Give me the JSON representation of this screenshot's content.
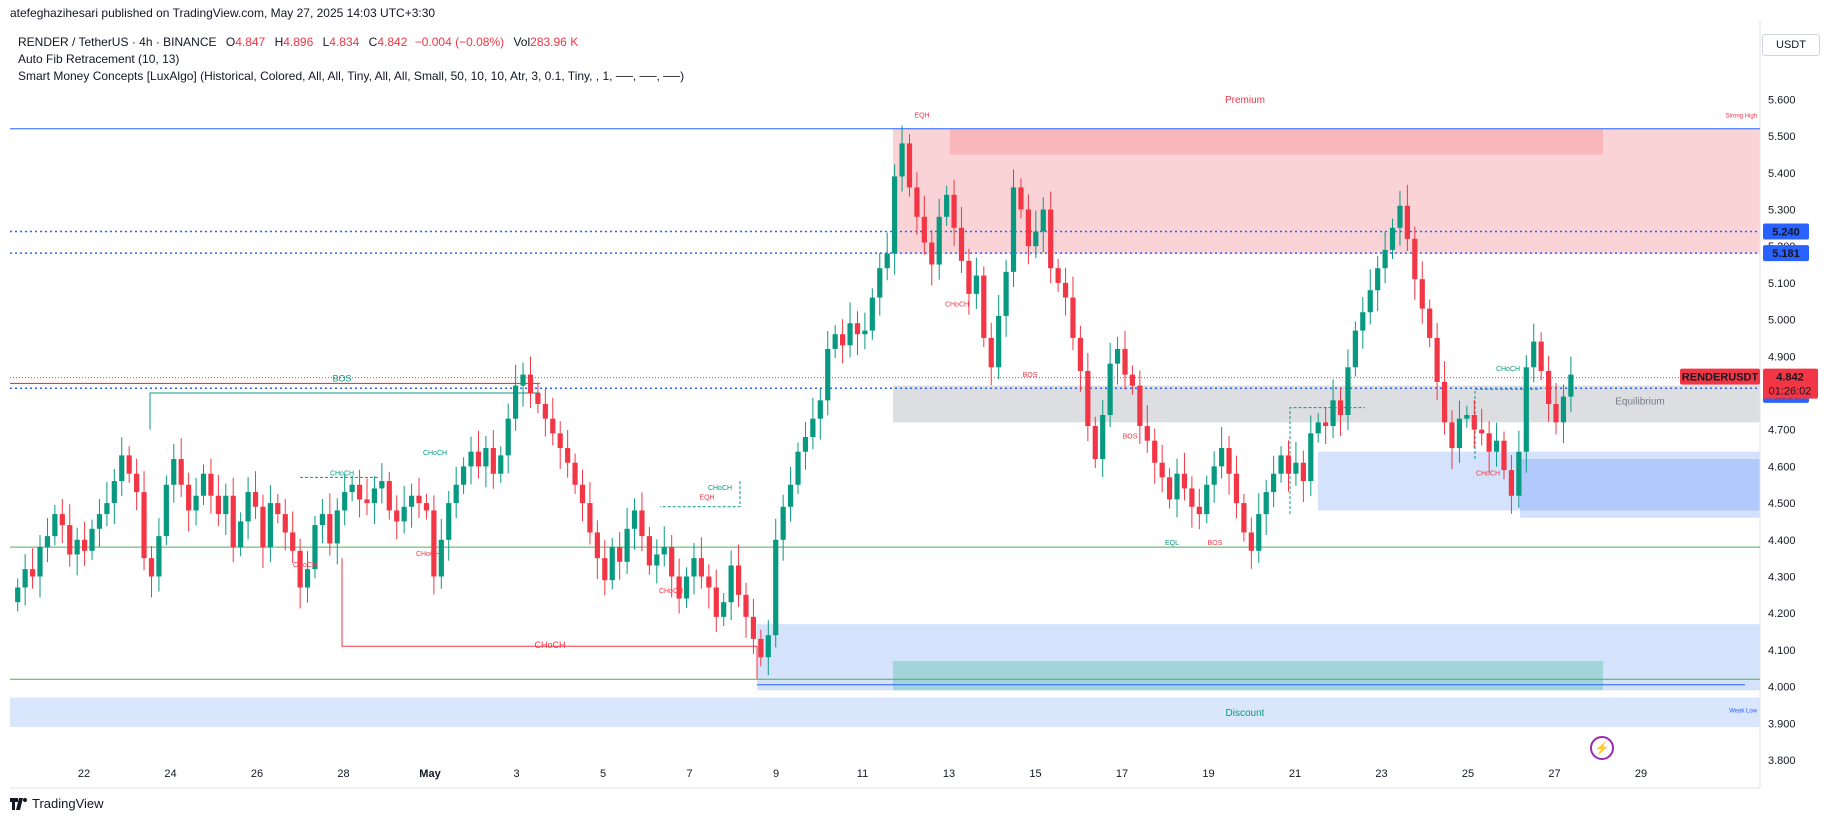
{
  "header": {
    "published": "atefeghazihesari published on TradingView.com, May 27, 2025 14:03 UTC+3:30"
  },
  "legend": {
    "symbol": "RENDER / TetherUS · 4h · BINANCE",
    "o_label": "O",
    "o_val": "4.847",
    "h_label": "H",
    "h_val": "4.896",
    "l_label": "L",
    "l_val": "4.834",
    "c_label": "C",
    "c_val": "4.842",
    "change": "−0.004 (−0.08%)",
    "vol_label": "Vol",
    "vol_val": "283.96 K",
    "indicator1": "Auto Fib Retracement (10, 13)",
    "indicator2": "Smart Money Concepts [LuxAlgo] (Historical, Colored, All, All, Tiny, All, All, Small, 50, 10, 10, Atr, 3, 0.1, Tiny, , 1, ──, ──, ──)"
  },
  "currency_button": "USDT",
  "footer": {
    "brand": "TradingView",
    "logo_icon": "tradingview-logo-icon"
  },
  "colors": {
    "up": "#089981",
    "down": "#f23645",
    "blue_line": "#2962ff",
    "premium": "#f7a1a8",
    "discount": "#9fc1f6"
  },
  "chart_data": {
    "type": "candlestick",
    "symbol": "RENDERUSDT",
    "timeframe": "4h",
    "ylim": [
      3.8,
      5.68
    ],
    "y_ticks": [
      "5.600",
      "5.500",
      "5.400",
      "5.300",
      "5.200",
      "5.100",
      "5.000",
      "4.900",
      "4.800",
      "4.700",
      "4.600",
      "4.500",
      "4.400",
      "4.300",
      "4.200",
      "4.100",
      "4.000",
      "3.900",
      "3.800"
    ],
    "x_ticks": [
      "22",
      "24",
      "26",
      "28",
      "May",
      "3",
      "5",
      "7",
      "9",
      "11",
      "13",
      "15",
      "17",
      "19",
      "21",
      "23",
      "25",
      "27",
      "29"
    ],
    "price_labels": [
      {
        "text": "5.240",
        "value": 5.24,
        "color": "#2962ff"
      },
      {
        "text": "5.181",
        "value": 5.181,
        "color": "#2962ff"
      },
      {
        "text": "4.813",
        "value": 4.813,
        "color": "#2962ff"
      },
      {
        "text": "4.795",
        "value": 4.795,
        "color": "#2962ff"
      }
    ],
    "last_price": {
      "symbol": "RENDERUSDT",
      "value": "4.842",
      "countdown": "01:26:02"
    },
    "zone_labels": {
      "premium": "Premium",
      "discount": "Discount",
      "equilibrium": "Equilibrium",
      "strong_high": "Strong High",
      "weak_low": "Weak Low"
    },
    "structure_labels": [
      "BOS",
      "CHoCH",
      "CHoCH",
      "CHoCH",
      "CHoCH",
      "CHoCH",
      "CHoCH",
      "EQH",
      "EQH",
      "CHoCH",
      "CHoCH",
      "BOS",
      "BOS",
      "EQL",
      "BOS",
      "CHoCH",
      "CHoCH"
    ],
    "closes": [
      4.27,
      4.32,
      4.3,
      4.38,
      4.41,
      4.47,
      4.44,
      4.36,
      4.4,
      4.37,
      4.43,
      4.47,
      4.5,
      4.56,
      4.63,
      4.58,
      4.53,
      4.35,
      4.3,
      4.41,
      4.55,
      4.62,
      4.55,
      4.48,
      4.52,
      4.58,
      4.52,
      4.47,
      4.52,
      4.38,
      4.45,
      4.53,
      4.49,
      4.38,
      4.5,
      4.47,
      4.42,
      4.37,
      4.27,
      4.32,
      4.44,
      4.47,
      4.39,
      4.48,
      4.53,
      4.55,
      4.51,
      4.5,
      4.54,
      4.56,
      4.48,
      4.45,
      4.49,
      4.52,
      4.5,
      4.48,
      4.3,
      4.4,
      4.5,
      4.55,
      4.6,
      4.64,
      4.6,
      4.65,
      4.58,
      4.63,
      4.73,
      4.82,
      4.85,
      4.8,
      4.77,
      4.73,
      4.69,
      4.65,
      4.61,
      4.55,
      4.5,
      4.42,
      4.35,
      4.29,
      4.38,
      4.34,
      4.43,
      4.48,
      4.41,
      4.33,
      4.36,
      4.38,
      4.3,
      4.24,
      4.3,
      4.35,
      4.3,
      4.27,
      4.19,
      4.23,
      4.33,
      4.25,
      4.19,
      4.13,
      4.08,
      4.14,
      4.4,
      4.49,
      4.55,
      4.64,
      4.68,
      4.73,
      4.78,
      4.92,
      4.96,
      4.93,
      4.99,
      4.96,
      4.97,
      5.06,
      5.14,
      5.18,
      5.39,
      5.48,
      5.36,
      5.28,
      5.21,
      5.15,
      5.28,
      5.34,
      5.25,
      5.16,
      5.07,
      5.12,
      4.95,
      4.87,
      5.01,
      5.13,
      5.36,
      5.3,
      5.2,
      5.24,
      5.3,
      5.14,
      5.1,
      5.06,
      4.95,
      4.86,
      4.71,
      4.62,
      4.74,
      4.88,
      4.92,
      4.85,
      4.82,
      4.71,
      4.67,
      4.61,
      4.57,
      4.51,
      4.58,
      4.54,
      4.49,
      4.47,
      4.55,
      4.6,
      4.65,
      4.58,
      4.5,
      4.42,
      4.37,
      4.47,
      4.53,
      4.58,
      4.63,
      4.58,
      4.61,
      4.56,
      4.69,
      4.72,
      4.71,
      4.78,
      4.74,
      4.87,
      4.97,
      5.02,
      5.08,
      5.14,
      5.19,
      5.25,
      5.31,
      5.22,
      5.11,
      5.03,
      4.95,
      4.83,
      4.72,
      4.65,
      4.73,
      4.74,
      4.7,
      4.69,
      4.64,
      4.67,
      4.59,
      4.52,
      4.64,
      4.87,
      4.94,
      4.86,
      4.77,
      4.72,
      4.79,
      4.85
    ]
  }
}
